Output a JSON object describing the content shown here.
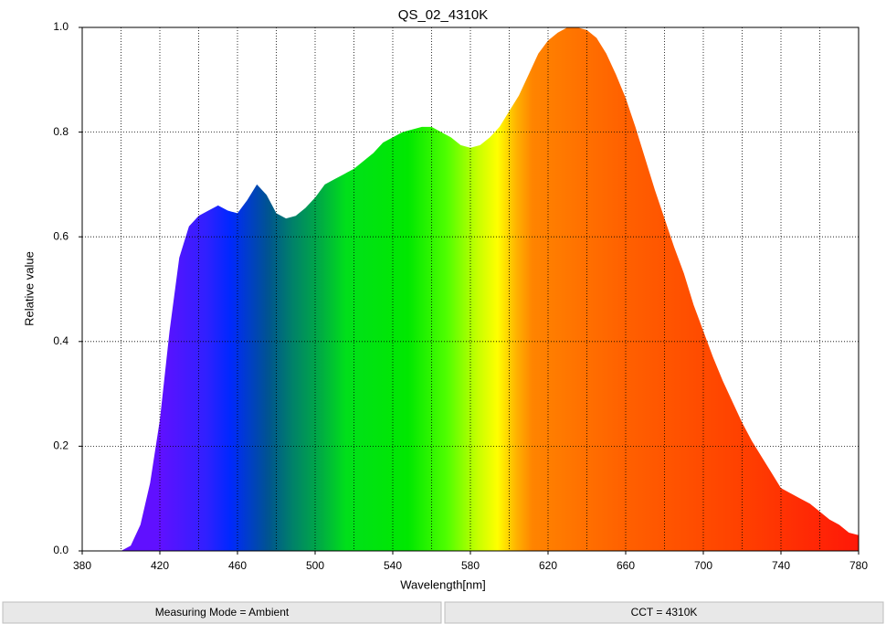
{
  "chart_data": {
    "type": "area",
    "title": "QS_02_4310K",
    "xlabel": "Wavelength[nm]",
    "ylabel": "Relative value",
    "x": [
      400,
      405,
      410,
      415,
      420,
      425,
      430,
      435,
      440,
      445,
      450,
      455,
      460,
      465,
      470,
      475,
      480,
      485,
      490,
      495,
      500,
      505,
      510,
      515,
      520,
      525,
      530,
      535,
      540,
      545,
      550,
      555,
      560,
      565,
      570,
      575,
      580,
      585,
      590,
      595,
      600,
      605,
      610,
      615,
      620,
      625,
      630,
      635,
      640,
      645,
      650,
      655,
      660,
      665,
      670,
      675,
      680,
      685,
      690,
      695,
      700,
      705,
      710,
      715,
      720,
      725,
      730,
      735,
      740,
      745,
      750,
      755,
      760,
      765,
      770,
      775,
      780
    ],
    "values": [
      0,
      0.01,
      0.05,
      0.13,
      0.25,
      0.42,
      0.56,
      0.62,
      0.64,
      0.65,
      0.66,
      0.65,
      0.645,
      0.67,
      0.7,
      0.68,
      0.645,
      0.635,
      0.64,
      0.655,
      0.675,
      0.7,
      0.71,
      0.72,
      0.73,
      0.745,
      0.76,
      0.78,
      0.79,
      0.8,
      0.805,
      0.81,
      0.81,
      0.8,
      0.79,
      0.775,
      0.77,
      0.775,
      0.79,
      0.81,
      0.84,
      0.87,
      0.91,
      0.95,
      0.975,
      0.99,
      1.0,
      1.0,
      0.995,
      0.98,
      0.95,
      0.91,
      0.865,
      0.81,
      0.75,
      0.69,
      0.635,
      0.58,
      0.53,
      0.47,
      0.42,
      0.37,
      0.325,
      0.285,
      0.245,
      0.21,
      0.18,
      0.15,
      0.12,
      0.11,
      0.1,
      0.09,
      0.075,
      0.06,
      0.05,
      0.035,
      0.03
    ],
    "xlim": [
      380,
      780
    ],
    "xticks": [
      380,
      420,
      460,
      500,
      540,
      580,
      620,
      660,
      700,
      740,
      780
    ],
    "x_minor_ticks": [
      400,
      440,
      480,
      520,
      560,
      600,
      640,
      680,
      720,
      760
    ],
    "ylim": [
      0,
      1
    ],
    "yticks": [
      {
        "value": 0,
        "label": "0.0"
      },
      0.2,
      0.4,
      0.6,
      0.8,
      {
        "value": 1,
        "label": "1.0"
      }
    ],
    "grid": true
  },
  "status_bar": [
    "Measuring Mode = Ambient",
    "CCT = 4310K"
  ]
}
